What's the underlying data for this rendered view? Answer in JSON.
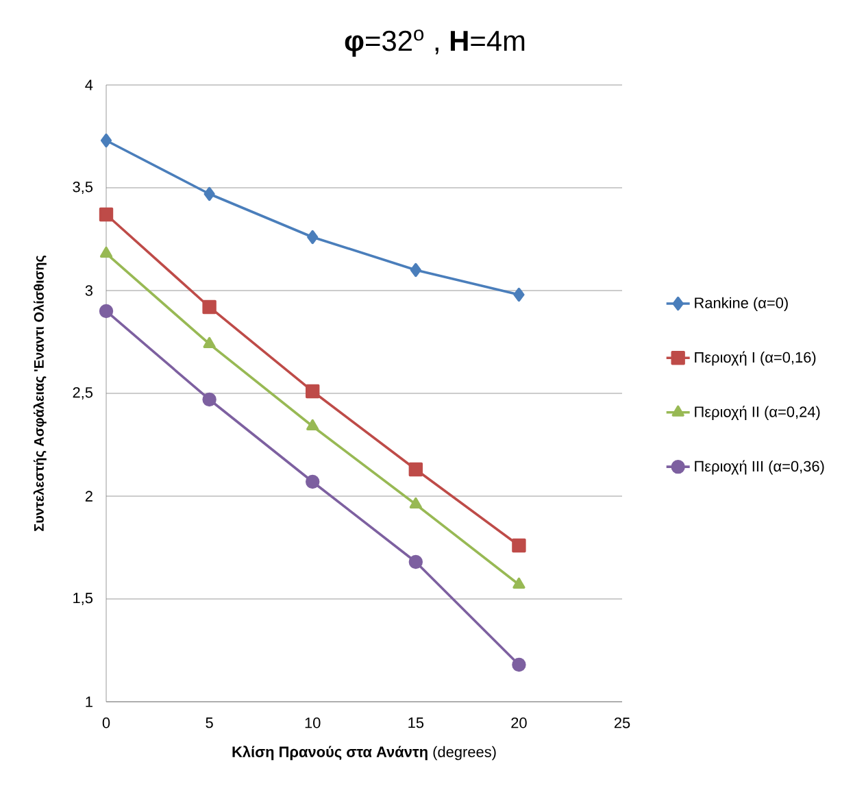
{
  "chart_data": {
    "type": "line",
    "title": "**φ**=32$^{o}$ , **H**=4m",
    "xlabel": "**Κλίση Πρανούς στα Ανάντη** (degrees)",
    "ylabel": "Συντελεστής Ασφάλειας 'Εναντι Ολίσθισης",
    "x": [
      0,
      5,
      10,
      15,
      20
    ],
    "series": [
      {
        "name": "Rankine (α=0)",
        "color": "#4a7ebb",
        "marker": "diamond",
        "values": [
          3.73,
          3.47,
          3.26,
          3.1,
          2.98
        ]
      },
      {
        "name": "Περιοχή I (α=0,16)",
        "color": "#be4b48",
        "marker": "square",
        "values": [
          3.37,
          2.92,
          2.51,
          2.13,
          1.76
        ]
      },
      {
        "name": "Περιοχή II (α=0,24)",
        "color": "#98b954",
        "marker": "triangle",
        "values": [
          3.18,
          2.74,
          2.34,
          1.96,
          1.57
        ]
      },
      {
        "name": "Περιοχή III (α=0,36)",
        "color": "#7d60a0",
        "marker": "circle",
        "values": [
          2.9,
          2.47,
          2.07,
          1.68,
          1.18
        ]
      }
    ],
    "xlim": [
      0,
      25
    ],
    "xticks": [
      0,
      5,
      10,
      15,
      20,
      25
    ],
    "ylim": [
      1,
      4
    ],
    "yticks": [
      1,
      {
        "value": 1.5,
        "label": "1,5"
      },
      2,
      {
        "value": 2.5,
        "label": "2,5"
      },
      3,
      {
        "value": 3.5,
        "label": "3,5"
      },
      4
    ],
    "grid": "y",
    "legend": "right",
    "line_style": "solid"
  }
}
